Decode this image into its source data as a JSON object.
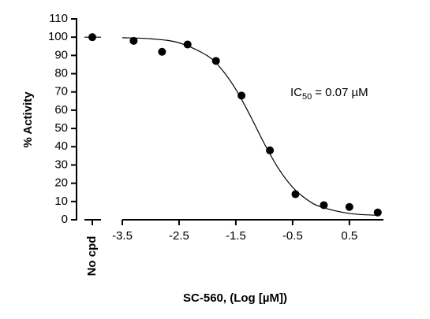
{
  "chart_data": {
    "type": "scatter",
    "xlabel": "SC-560, (Log [µM])",
    "ylabel": "% Activity",
    "annotation": {
      "main": "IC",
      "sub": "50",
      "rest": "= 0.07 µM"
    },
    "control": {
      "label": "No cpd",
      "value": 100
    },
    "x": [
      -3.3,
      -2.8,
      -2.35,
      -1.85,
      -1.4,
      -0.9,
      -0.45,
      0.05,
      0.5,
      1.0
    ],
    "values": [
      98,
      92,
      96,
      87,
      68,
      38,
      14,
      8,
      7,
      4
    ],
    "color": "#000000",
    "fit": {
      "x": [
        -3.5,
        -3.0,
        -2.5,
        -2.0,
        -1.75,
        -1.5,
        -1.25,
        -1.0,
        -0.75,
        -0.5,
        -0.25,
        0.0,
        0.5,
        1.0
      ],
      "values": [
        99.7,
        99.1,
        96.9,
        89.8,
        82.4,
        71.4,
        57.2,
        41.8,
        28.1,
        17.8,
        11.1,
        7.05,
        3.48,
        2.42
      ]
    },
    "xlim": [
      -3.5,
      1.1
    ],
    "xticks": [
      -3.5,
      -2.5,
      -1.5,
      -0.5,
      0.5
    ],
    "ylim": [
      0,
      110
    ],
    "yticks": [
      0,
      10,
      20,
      30,
      40,
      50,
      60,
      70,
      80,
      90,
      100,
      110
    ]
  }
}
